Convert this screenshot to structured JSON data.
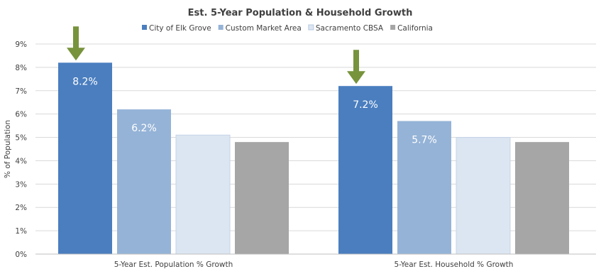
{
  "chart_data": {
    "type": "bar",
    "title": "Est. 5-Year Population & Household Growth",
    "ylabel": "% of Population",
    "xlabel": "",
    "ylim": [
      0,
      9
    ],
    "y_ticks": [
      "0%",
      "1%",
      "2%",
      "3%",
      "4%",
      "5%",
      "6%",
      "7%",
      "8%",
      "9%"
    ],
    "grid": true,
    "legend_position": "top",
    "categories": [
      "5-Year Est. Population % Growth",
      "5-Year Est. Household % Growth"
    ],
    "series": [
      {
        "name": "City of Elk Grove",
        "color": "#4a7ebf",
        "values": [
          8.2,
          7.2
        ],
        "labels": [
          "8.2%",
          "7.2%"
        ]
      },
      {
        "name": "Custom Market Area",
        "color": "#95b3d7",
        "values": [
          6.2,
          5.7
        ],
        "labels": [
          "6.2%",
          "5.7%"
        ]
      },
      {
        "name": "Sacramento CBSA",
        "color": "#dce6f2",
        "values": [
          5.1,
          5.0
        ],
        "labels": [
          "",
          ""
        ]
      },
      {
        "name": "California",
        "color": "#a6a6a6",
        "values": [
          4.8,
          4.8
        ],
        "labels": [
          "",
          ""
        ]
      }
    ],
    "highlight_arrows": {
      "color": "#77933c",
      "series": "City of Elk Grove"
    }
  }
}
